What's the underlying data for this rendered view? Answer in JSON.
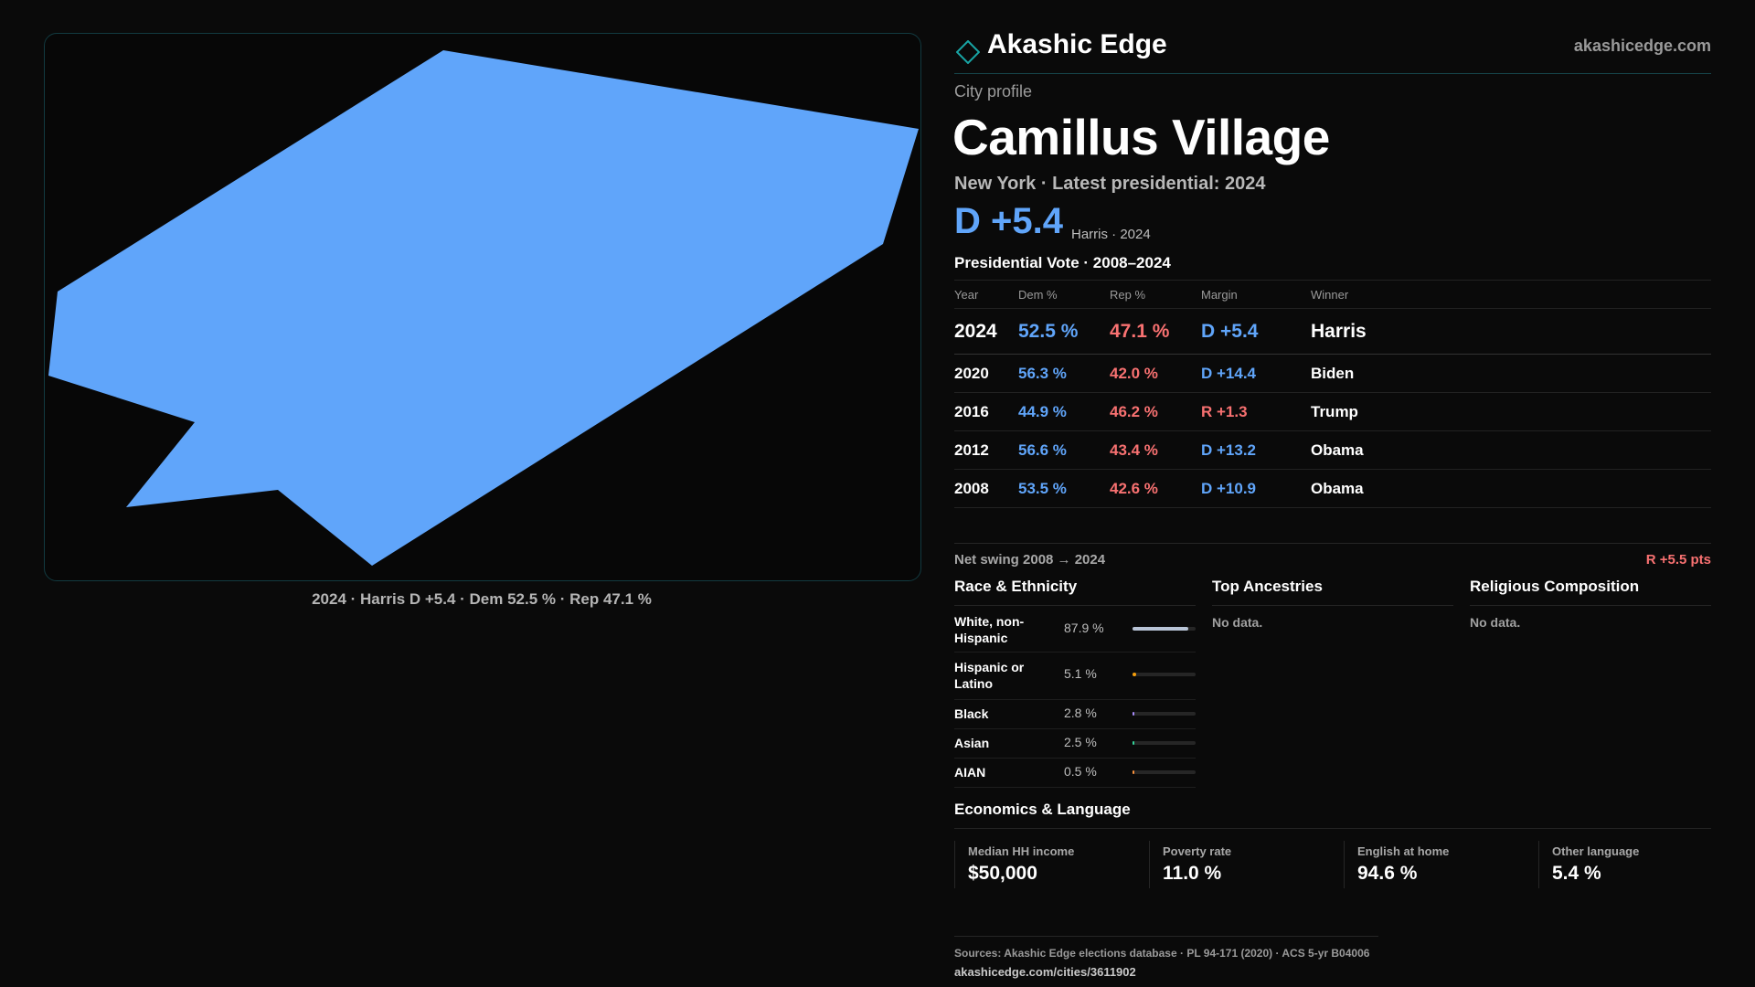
{
  "brand": {
    "name": "Akashic Edge",
    "site": "akashicedge.com"
  },
  "map": {
    "fill_color": "#60a5fa",
    "caption": "2024 · Harris D +5.4 · Dem 52.5 % · Rep 47.1 %"
  },
  "profile": {
    "kicker": "City profile",
    "title": "Camillus Village",
    "subline": "New York  · Latest presidential: 2024",
    "headline_margin": "D +5.4",
    "headline_sub": "Harris · 2024"
  },
  "vote": {
    "heading": "Presidential Vote · 2008–2024",
    "columns": [
      "Year",
      "Dem %",
      "Rep %",
      "Margin",
      "Winner"
    ],
    "rows": [
      {
        "year": "2024",
        "dem": "52.5 %",
        "rep": "47.1 %",
        "margin": "D +5.4",
        "winner": "Harris"
      },
      {
        "year": "2020",
        "dem": "56.3 %",
        "rep": "42.0 %",
        "margin": "D +14.4",
        "winner": "Biden"
      },
      {
        "year": "2016",
        "dem": "44.9 %",
        "rep": "46.2 %",
        "margin": "R +1.3",
        "winner": "Trump"
      },
      {
        "year": "2012",
        "dem": "56.6 %",
        "rep": "43.4 %",
        "margin": "D +13.2",
        "winner": "Obama"
      },
      {
        "year": "2008",
        "dem": "53.5 %",
        "rep": "42.6 %",
        "margin": "D +10.9",
        "winner": "Obama"
      }
    ],
    "swing_label": "Net swing 2008 → 2024",
    "swing_value": "R +5.5 pts"
  },
  "race": {
    "title": "Race & Ethnicity",
    "rows": [
      {
        "label": "White, non-Hispanic",
        "pct": "87.9 %",
        "share": 0.879,
        "color": "#b8c4d6"
      },
      {
        "label": "Hispanic or Latino",
        "pct": "5.1 %",
        "share": 0.051,
        "color": "#f59e0b"
      },
      {
        "label": "Black",
        "pct": "2.8 %",
        "share": 0.028,
        "color": "#a78bfa"
      },
      {
        "label": "Asian",
        "pct": "2.5 %",
        "share": 0.025,
        "color": "#34d399"
      },
      {
        "label": "AIAN",
        "pct": "0.5 %",
        "share": 0.005,
        "color": "#fb923c"
      }
    ]
  },
  "ancestries": {
    "title": "Top Ancestries",
    "empty": "No data."
  },
  "religion": {
    "title": "Religious Composition",
    "empty": "No data."
  },
  "economics": {
    "title": "Economics & Language",
    "stats": [
      {
        "label": "Median HH income",
        "value": "$50,000"
      },
      {
        "label": "Poverty rate",
        "value": "11.0 %"
      },
      {
        "label": "English at home",
        "value": "94.6 %"
      },
      {
        "label": "Other language",
        "value": "5.4 %"
      }
    ]
  },
  "footer": {
    "sources": "Sources: Akashic Edge elections database · PL 94-171 (2020) · ACS 5-yr B04006",
    "url": "akashicedge.com/cities/3611902"
  },
  "colors": {
    "accent": "#60a5fa",
    "dem": "#60a5fa",
    "rep": "#f87171",
    "teal_border": "#123a40"
  }
}
